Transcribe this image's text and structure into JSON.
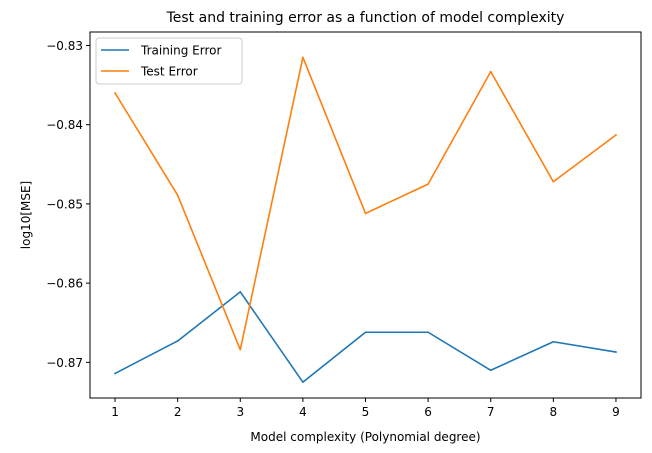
{
  "chart_data": {
    "type": "line",
    "title": "Test and training error as a function of model complexity",
    "xlabel": "Model complexity (Polynomial degree)",
    "ylabel": "log10[MSE]",
    "x": [
      1,
      2,
      3,
      4,
      5,
      6,
      7,
      8,
      9
    ],
    "xlim": [
      0.6,
      9.4
    ],
    "ylim": [
      -0.8745,
      -0.8283
    ],
    "xticks": [
      1,
      2,
      3,
      4,
      5,
      6,
      7,
      8,
      9
    ],
    "yticks": [
      -0.87,
      -0.86,
      -0.85,
      -0.84,
      -0.83
    ],
    "ytick_labels": [
      "−0.87",
      "−0.86",
      "−0.85",
      "−0.84",
      "−0.83"
    ],
    "grid": false,
    "legend_position": "top-left",
    "series": [
      {
        "name": "Training Error",
        "color": "#1f77b4",
        "values": [
          -0.8714,
          -0.8673,
          -0.8611,
          -0.8725,
          -0.8662,
          -0.8662,
          -0.871,
          -0.8674,
          -0.8687
        ]
      },
      {
        "name": "Test Error",
        "color": "#ff7f0e",
        "values": [
          -0.836,
          -0.8489,
          -0.8684,
          -0.8315,
          -0.8512,
          -0.8475,
          -0.8333,
          -0.8472,
          -0.8413
        ]
      }
    ]
  }
}
